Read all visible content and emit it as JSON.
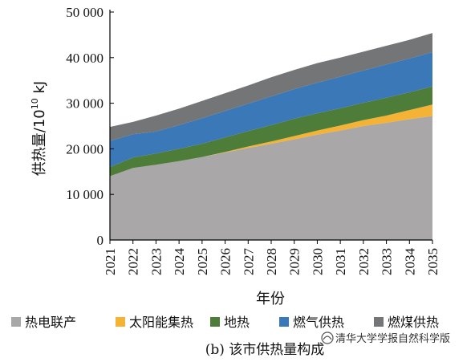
{
  "chart_data": {
    "type": "area",
    "stacked": true,
    "x": [
      2021,
      2022,
      2023,
      2024,
      2025,
      2026,
      2027,
      2028,
      2029,
      2030,
      2031,
      2032,
      2033,
      2034,
      2035
    ],
    "xlabel": "年份",
    "ylabel_main": "供热量/10",
    "ylabel_sup": "10",
    "ylabel_unit": " kJ",
    "ylim": [
      0,
      50000
    ],
    "yticks": [
      0,
      10000,
      20000,
      30000,
      40000,
      50000
    ],
    "ytick_labels": [
      "0",
      "10 000",
      "20 000",
      "30 000",
      "40 000",
      "50 000"
    ],
    "series": [
      {
        "name": "热电联产",
        "color": "#a9a7a8",
        "values": [
          14000,
          15800,
          16500,
          17300,
          18200,
          19200,
          20200,
          21100,
          22100,
          23100,
          24000,
          25000,
          25700,
          26500,
          27200
        ]
      },
      {
        "name": "太阳能集热",
        "color": "#f5b335",
        "values": [
          0,
          0,
          0,
          0,
          0,
          100,
          300,
          500,
          700,
          900,
          1100,
          1300,
          1600,
          2000,
          2500
        ]
      },
      {
        "name": "地热",
        "color": "#4e7d3a",
        "values": [
          2000,
          2300,
          2500,
          2700,
          2900,
          3200,
          3400,
          3600,
          3800,
          3800,
          3800,
          3800,
          3900,
          3900,
          4000
        ]
      },
      {
        "name": "燃气供热",
        "color": "#3b78b8",
        "values": [
          5700,
          5100,
          4800,
          5200,
          5600,
          5800,
          6000,
          6300,
          6500,
          6700,
          6900,
          7100,
          7300,
          7400,
          7500
        ]
      },
      {
        "name": "燃煤供热",
        "color": "#747577",
        "values": [
          3100,
          2700,
          3500,
          3600,
          3800,
          3900,
          4000,
          4200,
          4200,
          4300,
          4200,
          4100,
          4100,
          4100,
          4200
        ]
      }
    ]
  },
  "caption": "(b) 该市供热量构成",
  "watermark": "清华大学学报自然科学版"
}
